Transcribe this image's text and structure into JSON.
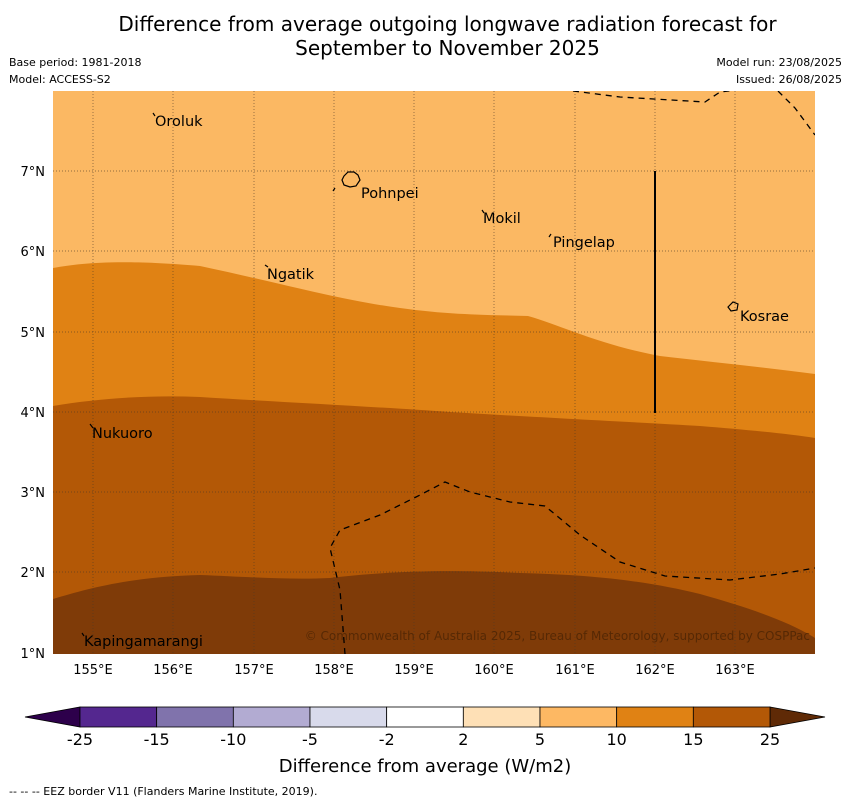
{
  "title_line1": "Difference from average outgoing longwave radiation forecast for",
  "title_line2": "September to November 2025",
  "base_period": "Base period: 1981-2018",
  "model": "Model: ACCESS-S2",
  "model_run": "Model run: 23/08/2025",
  "issued": "Issued: 26/08/2025",
  "copyright": "© Commonwealth of Australia 2025, Bureau of Meteorology, supported by COSPPac",
  "lat_labels": [
    "7°N",
    "6°N",
    "5°N",
    "4°N",
    "3°N",
    "2°N",
    "1°N"
  ],
  "lon_labels": [
    "155°E",
    "156°E",
    "157°E",
    "158°E",
    "159°E",
    "160°E",
    "161°E",
    "162°E",
    "163°E"
  ],
  "places": {
    "oroluk": "Oroluk",
    "pohnpei": "Pohnpei",
    "mokil": "Mokil",
    "pingelap": "Pingelap",
    "ngatik": "Ngatik",
    "kosrae": "Kosrae",
    "nukuoro": "Nukuoro",
    "kapingamarangi": "Kapingamarangi"
  },
  "colorbar": {
    "ticks": [
      "-25",
      "-15",
      "-10",
      "-5",
      "-2",
      "2",
      "5",
      "10",
      "15",
      "25"
    ],
    "colors": [
      "#54278f",
      "#8073ac",
      "#b2abd2",
      "#d8daeb",
      "#ffffff",
      "#fee0b6",
      "#fdb863",
      "#e08214",
      "#b35806",
      "#7f3b08"
    ],
    "label": "Difference from average (W/m2)"
  },
  "eez_note": "--  --  -- EEZ border V11 (Flanders Marine Institute, 2019)."
}
